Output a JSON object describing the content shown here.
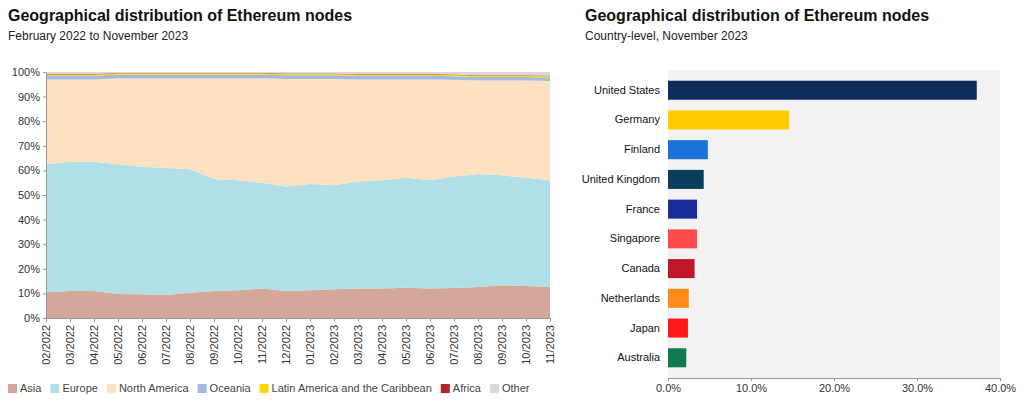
{
  "chart_data": [
    {
      "type": "area",
      "title": "Geographical distribution of Ethereum nodes",
      "subtitle": "February 2022 to November 2023",
      "stacked": true,
      "legend": "bottom",
      "grid": false,
      "categories": [
        "02/2022",
        "03/2022",
        "04/2022",
        "05/2022",
        "06/2022",
        "07/2022",
        "08/2022",
        "09/2022",
        "10/2022",
        "11/2022",
        "12/2022",
        "01/2023",
        "02/2023",
        "03/2023",
        "04/2023",
        "05/2023",
        "06/2023",
        "07/2023",
        "08/2023",
        "09/2023",
        "10/2023",
        "11/2023"
      ],
      "ylim": [
        0,
        100
      ],
      "yticks": [
        {
          "value": 0,
          "label": "0%"
        },
        {
          "value": 10,
          "label": "10%"
        },
        {
          "value": 20,
          "label": "20%"
        },
        {
          "value": 30,
          "label": "30%"
        },
        {
          "value": 40,
          "label": "40%"
        },
        {
          "value": 50,
          "label": "50%"
        },
        {
          "value": 60,
          "label": "60%"
        },
        {
          "value": 70,
          "label": "70%"
        },
        {
          "value": 80,
          "label": "80%"
        },
        {
          "value": 90,
          "label": "90%"
        },
        {
          "value": 100,
          "label": "100%"
        }
      ],
      "series": [
        {
          "name": "Asia",
          "color": "#d4a79b",
          "values": [
            10.5,
            11.0,
            11.0,
            9.8,
            9.7,
            9.3,
            10.3,
            11.0,
            11.3,
            12.0,
            11.0,
            11.3,
            11.7,
            12.0,
            12.0,
            12.3,
            12.0,
            12.2,
            12.6,
            13.3,
            13.0,
            12.7
          ]
        },
        {
          "name": "Europe",
          "color": "#b1dfe5",
          "values": [
            52.0,
            52.5,
            52.5,
            52.7,
            51.8,
            51.7,
            50.2,
            45.5,
            44.7,
            43.0,
            42.5,
            43.2,
            42.3,
            43.5,
            44.0,
            44.7,
            44.0,
            45.3,
            45.9,
            44.7,
            44.0,
            43.3
          ]
        },
        {
          "name": "North America",
          "color": "#fde1c1",
          "values": [
            34.5,
            33.5,
            33.5,
            35.0,
            36.0,
            36.5,
            37.0,
            41.0,
            41.5,
            42.5,
            43.7,
            42.7,
            43.2,
            41.5,
            41.0,
            40.0,
            41.0,
            39.3,
            38.0,
            38.5,
            39.5,
            40.3
          ]
        },
        {
          "name": "Oceania",
          "color": "#9fbbe3",
          "values": [
            1.5,
            1.5,
            1.5,
            1.5,
            1.5,
            1.5,
            1.5,
            1.5,
            1.5,
            1.5,
            1.5,
            1.5,
            1.5,
            1.5,
            1.5,
            1.5,
            1.5,
            1.5,
            1.5,
            1.5,
            1.5,
            1.5
          ]
        },
        {
          "name": "Latin America and the Caribbean",
          "color": "#ffd700",
          "values": [
            0.5,
            0.5,
            0.5,
            0.5,
            0.5,
            0.5,
            0.5,
            0.5,
            0.5,
            0.5,
            0.5,
            0.5,
            0.5,
            0.5,
            0.5,
            0.5,
            0.5,
            0.5,
            0.5,
            0.5,
            0.5,
            0.5
          ]
        },
        {
          "name": "Africa",
          "color": "#b2222a",
          "values": [
            0.2,
            0.2,
            0.2,
            0.2,
            0.2,
            0.2,
            0.2,
            0.2,
            0.2,
            0.2,
            0.2,
            0.2,
            0.2,
            0.2,
            0.2,
            0.2,
            0.2,
            0.2,
            0.2,
            0.2,
            0.2,
            0.2
          ]
        },
        {
          "name": "Other",
          "color": "#d9d9d9",
          "values": [
            0.8,
            0.8,
            0.8,
            0.3,
            0.3,
            0.3,
            0.3,
            0.3,
            0.3,
            0.3,
            0.6,
            0.6,
            0.6,
            0.8,
            0.8,
            0.8,
            0.8,
            1.0,
            1.3,
            1.3,
            1.3,
            1.5
          ]
        }
      ]
    },
    {
      "type": "bar",
      "title": "Geographical distribution of Ethereum nodes",
      "subtitle": "Country-level, November 2023",
      "orientation": "horizontal",
      "grid": false,
      "categories": [
        "United States",
        "Germany",
        "Finland",
        "United Kingdom",
        "France",
        "Singapore",
        "Canada",
        "Netherlands",
        "Japan",
        "Australia"
      ],
      "values": [
        37.2,
        14.6,
        4.8,
        4.3,
        3.5,
        3.5,
        3.2,
        2.5,
        2.4,
        2.2
      ],
      "colors": [
        "#0f2d5c",
        "#ffcc00",
        "#1a73d9",
        "#0b3d5c",
        "#1a2b9c",
        "#ff4d4d",
        "#c0182a",
        "#ff8c1a",
        "#ff1a1a",
        "#0f7a50"
      ],
      "xlim": [
        0,
        40
      ],
      "xticks": [
        {
          "value": 0,
          "label": "0.0%"
        },
        {
          "value": 10,
          "label": "10.0%"
        },
        {
          "value": 20,
          "label": "20.0%"
        },
        {
          "value": 30,
          "label": "30.0%"
        },
        {
          "value": 40,
          "label": "40.0%"
        }
      ]
    }
  ]
}
